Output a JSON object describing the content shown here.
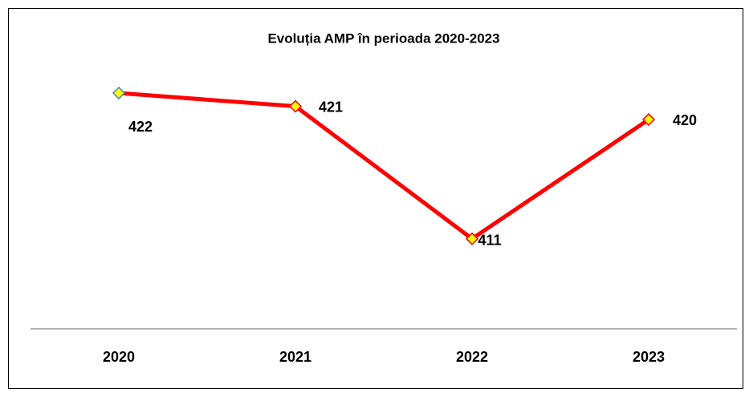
{
  "chart_data": {
    "type": "line",
    "title": "Evoluția AMP în perioada 2020-2023",
    "categories": [
      "2020",
      "2021",
      "2022",
      "2023"
    ],
    "series": [
      {
        "color": "#ff0000",
        "values": [
          422,
          421,
          411,
          420
        ],
        "marker_color": "#ffff00",
        "marker_edges": [
          "#4f81bd",
          "#ff0000",
          "#ff0000",
          "#ff0000"
        ]
      }
    ],
    "ylim": [
      404.2,
      424
    ]
  }
}
